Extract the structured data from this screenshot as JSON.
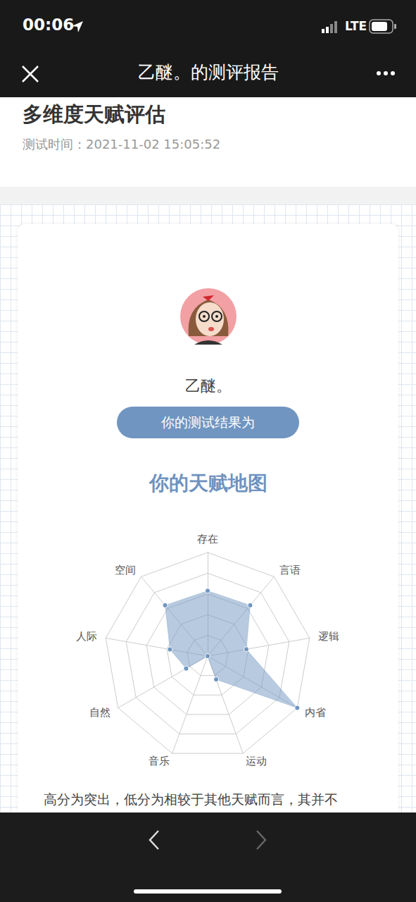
{
  "status_bar": {
    "time": "00:06",
    "network": "LTE"
  },
  "nav_bar": {
    "title": "乙醚。的测评报告"
  },
  "header": {
    "title": "多维度天赋评估",
    "test_time": "测试时间：2021-11-02 15:05:52"
  },
  "card": {
    "user_name": "乙醚。",
    "button": "你的测试结果为",
    "heading": "你的天赋地图",
    "note": "高分为突出，低分为相较于其他天赋而言，其并不"
  },
  "chart_data": {
    "type": "radar",
    "categories": [
      "存在",
      "空间",
      "人际",
      "自然",
      "音乐",
      "运动",
      "内省",
      "逻辑",
      "言语"
    ],
    "values": [
      63,
      64,
      37,
      24,
      0,
      24,
      100,
      38,
      64
    ],
    "color": "#7096c0",
    "ylim": [
      0,
      100
    ],
    "yticks": [
      0,
      20,
      40,
      60,
      80,
      100
    ],
    "grid": true,
    "tick_labels": false
  }
}
